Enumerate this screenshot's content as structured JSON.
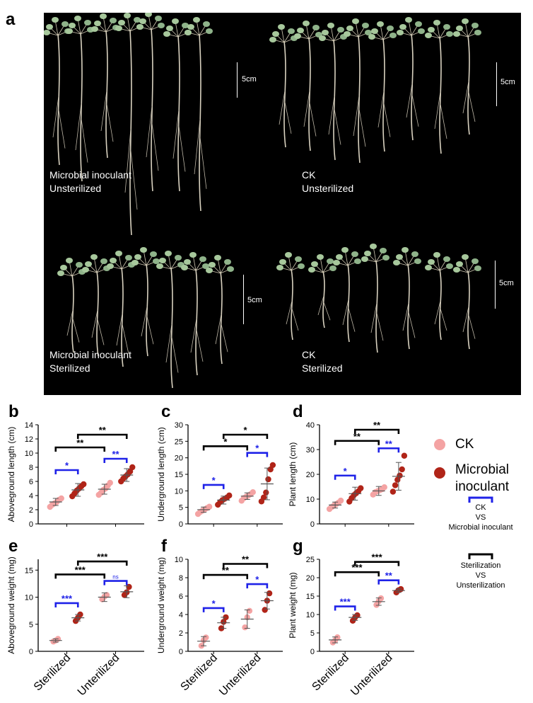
{
  "panel_letters": {
    "a": "a",
    "b": "b",
    "c": "c",
    "d": "d",
    "e": "e",
    "f": "f",
    "g": "g"
  },
  "photo": {
    "groups": [
      {
        "label": "Microbial inoculant\nUnsterilized",
        "scale": "5cm"
      },
      {
        "label": "CK\nUnsterilized",
        "scale": "5cm"
      },
      {
        "label": "Microbial inoculant\nSterilized",
        "scale": "5cm"
      },
      {
        "label": "CK\nSterilized",
        "scale": "5cm"
      }
    ]
  },
  "colors": {
    "ck": "#f4a3a3",
    "inoculant": "#b02418",
    "within": "#1f22e8",
    "between": "#000000"
  },
  "legend": {
    "ck": "CK",
    "inoculant": "Microbial\ninoculant",
    "within_lines": [
      "CK",
      "VS",
      "Microbial inoculant"
    ],
    "between_lines": [
      "Sterilization",
      "VS",
      "Unsterilization"
    ]
  },
  "chart_data": [
    {
      "panel": "b",
      "type": "scatter",
      "ylabel": "Aboveground length (cm)",
      "ylim": [
        0,
        14
      ],
      "yticks": [
        0,
        2,
        4,
        6,
        8,
        10,
        12,
        14
      ],
      "categories": [
        "Sterilized",
        "Unterilized"
      ],
      "series": [
        {
          "name": "CK",
          "points": [
            [
              2.4,
              2.7,
              2.9,
              3.1,
              3.4,
              3.6
            ],
            [
              4.1,
              4.4,
              4.8,
              5.0,
              5.4,
              5.8
            ]
          ],
          "mean": [
            3.1,
            4.9
          ],
          "sd": [
            0.5,
            0.7
          ]
        },
        {
          "name": "Microbial inoculant",
          "points": [
            [
              3.9,
              4.3,
              4.7,
              5.0,
              5.3,
              5.6
            ],
            [
              6.0,
              6.4,
              6.7,
              7.0,
              7.4,
              8.0
            ]
          ],
          "mean": [
            4.8,
            6.9
          ],
          "sd": [
            0.9,
            0.9
          ]
        }
      ],
      "sig": [
        {
          "type": "within",
          "group": 0,
          "label": "*",
          "y": 7.6
        },
        {
          "type": "within",
          "group": 1,
          "label": "**",
          "y": 9.2
        },
        {
          "type": "between",
          "series": 0,
          "label": "**",
          "y": 10.8
        },
        {
          "type": "between",
          "series": 1,
          "label": "**",
          "y": 12.6
        }
      ]
    },
    {
      "panel": "c",
      "type": "scatter",
      "ylabel": "Underground length (cm)",
      "ylim": [
        0,
        30
      ],
      "yticks": [
        0,
        5,
        10,
        15,
        20,
        25,
        30
      ],
      "categories": [
        "Sterilized",
        "Unterilized"
      ],
      "series": [
        {
          "name": "CK",
          "points": [
            [
              3.0,
              3.6,
              4.0,
              4.4,
              4.8,
              5.2
            ],
            [
              7.0,
              7.8,
              8.2,
              8.6,
              9.0,
              9.6
            ]
          ],
          "mean": [
            4.3,
            8.4
          ],
          "sd": [
            0.8,
            1.0
          ]
        },
        {
          "name": "Microbial inoculant",
          "points": [
            [
              5.8,
              6.6,
              7.2,
              7.6,
              8.0,
              8.6
            ],
            [
              6.8,
              8.0,
              9.5,
              13.5,
              16.5,
              17.8
            ]
          ],
          "mean": [
            7.2,
            12.1
          ],
          "sd": [
            1.2,
            4.8
          ]
        }
      ],
      "sig": [
        {
          "type": "within",
          "group": 0,
          "label": "*",
          "y": 11.8
        },
        {
          "type": "within",
          "group": 1,
          "label": "*",
          "y": 21.5
        },
        {
          "type": "between",
          "series": 0,
          "label": "*",
          "y": 23.5
        },
        {
          "type": "between",
          "series": 1,
          "label": "*",
          "y": 27.0
        }
      ]
    },
    {
      "panel": "d",
      "type": "scatter",
      "ylabel": "Plant length (cm)",
      "ylim": [
        0,
        40
      ],
      "yticks": [
        0,
        10,
        20,
        30,
        40
      ],
      "categories": [
        "Sterilized",
        "Unterilized"
      ],
      "series": [
        {
          "name": "CK",
          "points": [
            [
              6.0,
              6.8,
              7.4,
              8.0,
              8.6,
              9.4
            ],
            [
              11.8,
              12.8,
              13.2,
              13.6,
              14.0,
              14.8
            ]
          ],
          "mean": [
            7.6,
            13.3
          ],
          "sd": [
            1.2,
            1.8
          ]
        },
        {
          "name": "Microbial inoculant",
          "points": [
            [
              9.0,
              10.4,
              11.6,
              12.4,
              13.2,
              14.4
            ],
            [
              13.0,
              15.6,
              17.8,
              19.5,
              22.0,
              27.5
            ]
          ],
          "mean": [
            12.2,
            19.2
          ],
          "sd": [
            2.6,
            5.6
          ]
        }
      ],
      "sig": [
        {
          "type": "within",
          "group": 0,
          "label": "*",
          "y": 19.5
        },
        {
          "type": "within",
          "group": 1,
          "label": "**",
          "y": 30.5
        },
        {
          "type": "between",
          "series": 0,
          "label": "**",
          "y": 33.5
        },
        {
          "type": "between",
          "series": 1,
          "label": "**",
          "y": 38.0
        }
      ]
    },
    {
      "panel": "e",
      "type": "scatter",
      "ylabel": "Aboveground weight (mg)",
      "ylim": [
        0,
        17
      ],
      "yticks": [
        0,
        5,
        10,
        15
      ],
      "categories": [
        "Sterilized",
        "Unterilized"
      ],
      "series": [
        {
          "name": "CK",
          "points": [
            [
              1.8,
              2.0,
              2.3
            ],
            [
              9.6,
              10.1,
              10.4
            ]
          ],
          "mean": [
            2.0,
            10.0
          ],
          "sd": [
            0.3,
            0.8
          ]
        },
        {
          "name": "Microbial inoculant",
          "points": [
            [
              5.6,
              6.2,
              6.8
            ],
            [
              10.4,
              10.9,
              11.9
            ]
          ],
          "mean": [
            6.2,
            11.0
          ],
          "sd": [
            0.6,
            1.1
          ]
        }
      ],
      "sig": [
        {
          "type": "within",
          "group": 0,
          "label": "***",
          "y": 8.9
        },
        {
          "type": "within",
          "group": 1,
          "label": "ns",
          "y": 13.0
        },
        {
          "type": "between",
          "series": 0,
          "label": "***",
          "y": 14.2
        },
        {
          "type": "between",
          "series": 1,
          "label": "***",
          "y": 16.6
        }
      ]
    },
    {
      "panel": "f",
      "type": "scatter",
      "ylabel": "Underground weight (mg)",
      "ylim": [
        0,
        10
      ],
      "yticks": [
        0,
        2,
        4,
        6,
        8,
        10
      ],
      "categories": [
        "Sterilized",
        "Unterilized"
      ],
      "series": [
        {
          "name": "CK",
          "points": [
            [
              0.6,
              1.2,
              1.5
            ],
            [
              2.6,
              3.7,
              4.4
            ]
          ],
          "mean": [
            1.1,
            3.5
          ],
          "sd": [
            0.5,
            1.0
          ]
        },
        {
          "name": "Microbial inoculant",
          "points": [
            [
              2.5,
              3.2,
              3.7
            ],
            [
              4.5,
              5.5,
              6.3
            ]
          ],
          "mean": [
            3.1,
            5.5
          ],
          "sd": [
            0.6,
            0.9
          ]
        }
      ],
      "sig": [
        {
          "type": "within",
          "group": 0,
          "label": "*",
          "y": 4.7
        },
        {
          "type": "within",
          "group": 1,
          "label": "*",
          "y": 7.3
        },
        {
          "type": "between",
          "series": 0,
          "label": "**",
          "y": 8.3
        },
        {
          "type": "between",
          "series": 1,
          "label": "**",
          "y": 9.5
        }
      ]
    },
    {
      "panel": "g",
      "type": "scatter",
      "ylabel": "Plant weight (mg)",
      "ylim": [
        0,
        25
      ],
      "yticks": [
        0,
        5,
        10,
        15,
        20,
        25
      ],
      "categories": [
        "Sterilized",
        "Unterilized"
      ],
      "series": [
        {
          "name": "CK",
          "points": [
            [
              2.4,
              3.0,
              3.8
            ],
            [
              12.6,
              13.6,
              14.4
            ]
          ],
          "mean": [
            3.1,
            13.5
          ],
          "sd": [
            0.8,
            1.0
          ]
        },
        {
          "name": "Microbial inoculant",
          "points": [
            [
              8.3,
              9.2,
              9.8
            ],
            [
              16.0,
              16.6,
              16.9
            ]
          ],
          "mean": [
            9.2,
            16.5
          ],
          "sd": [
            0.8,
            0.5
          ]
        }
      ],
      "sig": [
        {
          "type": "within",
          "group": 0,
          "label": "***",
          "y": 12.2
        },
        {
          "type": "within",
          "group": 1,
          "label": "**",
          "y": 19.3
        },
        {
          "type": "between",
          "series": 0,
          "label": "***",
          "y": 21.5
        },
        {
          "type": "between",
          "series": 1,
          "label": "***",
          "y": 24.3
        }
      ]
    }
  ]
}
